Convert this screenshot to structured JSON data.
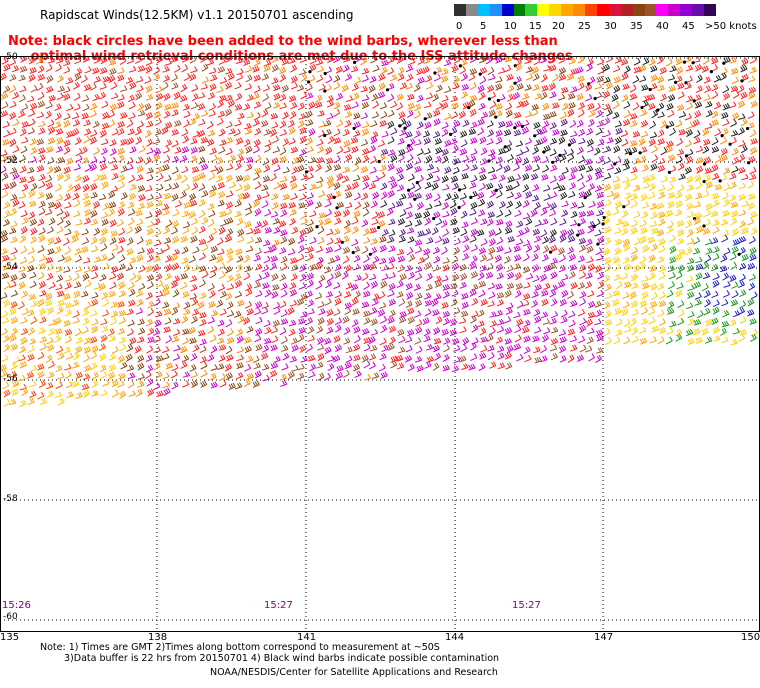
{
  "title": "Rapidscat Winds(12.5KM) v1.1 20150701 ascending",
  "note": "Note: black circles have been added to the wind barbs, wherever less than\n     optimal wind retrieval conditions are met due to the ISS attitude changes",
  "color_scale": {
    "labels": [
      "0",
      "5",
      "10",
      "15",
      "20",
      "25",
      "30",
      "35",
      "40",
      "45",
      ">50 knots"
    ],
    "colors": [
      "#303030",
      "#8a8a8a",
      "#00bfff",
      "#1e90ff",
      "#0000cd",
      "#008000",
      "#32cd32",
      "#ffff00",
      "#ffd700",
      "#ffa500",
      "#ff8c00",
      "#ff4500",
      "#ff0000",
      "#dc143c",
      "#b22222",
      "#8b4513",
      "#a0522d",
      "#ff00ff",
      "#cc00cc",
      "#9400d3",
      "#6a0dad",
      "#2e0854"
    ]
  },
  "axes": {
    "longitudes": [
      "135",
      "138",
      "141",
      "144",
      "147",
      "150"
    ],
    "latitudes": [
      "-50",
      "-52",
      "-54",
      "-56",
      "-58",
      "-60"
    ]
  },
  "pass_times": [
    "15:26",
    "15:27",
    "15:27"
  ],
  "footer": {
    "line1": "Note: 1) Times are GMT 2)Times along bottom correspond to measurement at ~50S",
    "line2": "3)Data buffer is 22 hrs from 20150701 4) Black wind barbs indicate possible contamination",
    "credit": "NOAA/NESDIS/Center for Satellite Applications and Research"
  }
}
